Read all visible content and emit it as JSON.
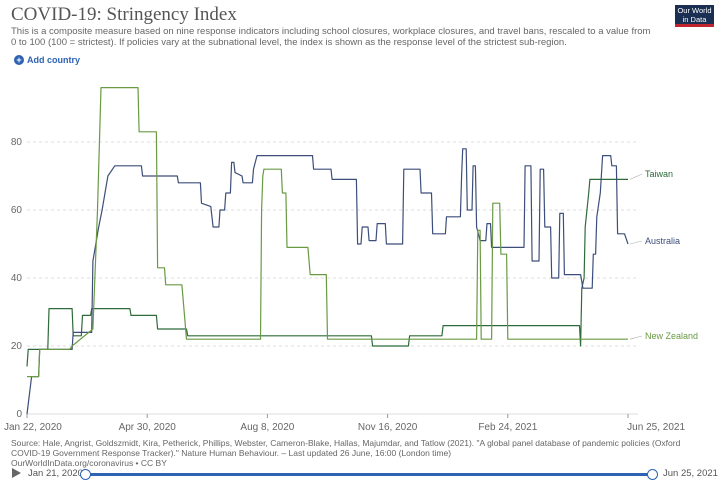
{
  "header": {
    "title": "COVID-19: Stringency Index",
    "subtitle": "This is a composite measure based on nine response indicators including school closures, workplace closures, and travel bans, rescaled to a value from 0 to 100 (100 = strictest). If policies vary at the subnational level, the index is shown as the response level of the strictest sub-region.",
    "logo_text": "Our World in Data",
    "add_country_label": "Add country"
  },
  "footer": {
    "source": "Source: Hale, Angrist, Goldszmidt, Kira, Petherick, Phillips, Webster, Cameron-Blake, Hallas, Majumdar, and Tatlow (2021). \"A global panel database of pandemic policies (Oxford COVID-19 Government Response Tracker).\" Nature Human Behaviour. – Last updated 26 June, 16:00 (London time)",
    "url_license": "OurWorldInData.org/coronavirus • CC BY"
  },
  "timeline": {
    "start_label": "Jan 21, 2020",
    "end_label": "Jun 25, 2021"
  },
  "colors": {
    "australia": "#3d4e7a",
    "taiwan": "#2f6b3a",
    "new_zealand": "#6a9a44",
    "grid": "#dddddd",
    "axis_text": "#666666",
    "accent": "#2e62b2"
  },
  "chart_data": {
    "type": "line",
    "title": "COVID-19: Stringency Index",
    "xlabel": "",
    "ylabel": "",
    "xlim": [
      "2020-01-22",
      "2021-06-25"
    ],
    "ylim": [
      0,
      100
    ],
    "yticks": [
      0,
      20,
      40,
      60,
      80
    ],
    "xtick_labels": [
      "Jan 22, 2020",
      "Apr 30, 2020",
      "Aug 8, 2020",
      "Nov 16, 2020",
      "Feb 24, 2021",
      "Jun 25, 2021"
    ],
    "grid": true,
    "legend": "inline-right",
    "series": [
      {
        "name": "Taiwan",
        "color_key": "taiwan",
        "points": [
          [
            "2020-01-22",
            14
          ],
          [
            "2020-01-23",
            19
          ],
          [
            "2020-02-09",
            19
          ],
          [
            "2020-02-10",
            31
          ],
          [
            "2020-03-01",
            31
          ],
          [
            "2020-03-02",
            23
          ],
          [
            "2020-03-09",
            23
          ],
          [
            "2020-03-10",
            29
          ],
          [
            "2020-03-17",
            29
          ],
          [
            "2020-03-18",
            31
          ],
          [
            "2020-04-05",
            31
          ],
          [
            "2020-04-06",
            31
          ],
          [
            "2020-04-20",
            31
          ],
          [
            "2020-04-21",
            29
          ],
          [
            "2020-05-13",
            29
          ],
          [
            "2020-05-14",
            25
          ],
          [
            "2020-06-08",
            25
          ],
          [
            "2020-06-09",
            23
          ],
          [
            "2020-11-15",
            23
          ],
          [
            "2020-11-16",
            20
          ],
          [
            "2020-12-17",
            20
          ],
          [
            "2020-12-18",
            23
          ],
          [
            "2021-01-15",
            23
          ],
          [
            "2021-01-16",
            26
          ],
          [
            "2021-05-14",
            26
          ],
          [
            "2021-05-15",
            20
          ],
          [
            "2021-05-16",
            37
          ],
          [
            "2021-05-18",
            40
          ],
          [
            "2021-05-19",
            55
          ],
          [
            "2021-05-22",
            65
          ],
          [
            "2021-05-23",
            69
          ],
          [
            "2021-06-25",
            69
          ]
        ]
      },
      {
        "name": "Australia",
        "color_key": "australia",
        "points": [
          [
            "2020-01-22",
            0
          ],
          [
            "2020-01-26",
            11
          ],
          [
            "2020-02-01",
            11
          ],
          [
            "2020-02-02",
            19
          ],
          [
            "2020-03-01",
            19
          ],
          [
            "2020-03-02",
            24
          ],
          [
            "2020-03-18",
            24
          ],
          [
            "2020-03-19",
            45
          ],
          [
            "2020-03-24",
            55
          ],
          [
            "2020-03-27",
            60
          ],
          [
            "2020-04-01",
            70
          ],
          [
            "2020-04-07",
            73
          ],
          [
            "2020-04-30",
            73
          ],
          [
            "2020-05-01",
            70
          ],
          [
            "2020-05-31",
            70
          ],
          [
            "2020-06-01",
            68
          ],
          [
            "2020-06-20",
            68
          ],
          [
            "2020-06-21",
            62
          ],
          [
            "2020-06-29",
            61
          ],
          [
            "2020-07-01",
            55
          ],
          [
            "2020-07-06",
            55
          ],
          [
            "2020-07-07",
            60
          ],
          [
            "2020-07-11",
            60
          ],
          [
            "2020-07-12",
            65
          ],
          [
            "2020-07-16",
            65
          ],
          [
            "2020-07-17",
            74
          ],
          [
            "2020-07-19",
            74
          ],
          [
            "2020-07-20",
            71
          ],
          [
            "2020-07-26",
            70
          ],
          [
            "2020-07-27",
            68
          ],
          [
            "2020-08-04",
            68
          ],
          [
            "2020-08-05",
            72
          ],
          [
            "2020-08-08",
            76
          ],
          [
            "2020-09-25",
            76
          ],
          [
            "2020-09-26",
            72
          ],
          [
            "2020-10-11",
            72
          ],
          [
            "2020-10-12",
            69
          ],
          [
            "2020-11-02",
            69
          ],
          [
            "2020-11-03",
            50
          ],
          [
            "2020-11-06",
            50
          ],
          [
            "2020-11-07",
            55
          ],
          [
            "2020-11-12",
            55
          ],
          [
            "2020-11-13",
            51
          ],
          [
            "2020-11-19",
            51
          ],
          [
            "2020-11-20",
            56
          ],
          [
            "2020-11-27",
            56
          ],
          [
            "2020-11-28",
            50
          ],
          [
            "2020-12-12",
            50
          ],
          [
            "2020-12-13",
            72
          ],
          [
            "2020-12-27",
            72
          ],
          [
            "2020-12-28",
            65
          ],
          [
            "2021-01-06",
            65
          ],
          [
            "2021-01-07",
            53
          ],
          [
            "2021-01-18",
            53
          ],
          [
            "2021-01-19",
            58
          ],
          [
            "2021-01-31",
            58
          ],
          [
            "2021-02-01",
            70
          ],
          [
            "2021-02-02",
            78
          ],
          [
            "2021-02-05",
            78
          ],
          [
            "2021-02-06",
            60
          ],
          [
            "2021-02-10",
            60
          ],
          [
            "2021-02-11",
            73
          ],
          [
            "2021-02-13",
            73
          ],
          [
            "2021-02-14",
            55
          ],
          [
            "2021-02-17",
            51
          ],
          [
            "2021-02-22",
            51
          ],
          [
            "2021-02-23",
            56
          ],
          [
            "2021-02-26",
            56
          ],
          [
            "2021-02-27",
            49
          ],
          [
            "2021-03-27",
            49
          ],
          [
            "2021-03-28",
            73
          ],
          [
            "2021-04-02",
            73
          ],
          [
            "2021-04-03",
            45
          ],
          [
            "2021-04-09",
            45
          ],
          [
            "2021-04-10",
            72
          ],
          [
            "2021-04-13",
            72
          ],
          [
            "2021-04-14",
            55
          ],
          [
            "2021-04-19",
            55
          ],
          [
            "2021-04-20",
            40
          ],
          [
            "2021-04-26",
            40
          ],
          [
            "2021-04-27",
            59
          ],
          [
            "2021-04-30",
            59
          ],
          [
            "2021-05-01",
            41
          ],
          [
            "2021-05-15",
            41
          ],
          [
            "2021-05-17",
            37
          ],
          [
            "2021-05-25",
            37
          ],
          [
            "2021-05-26",
            47
          ],
          [
            "2021-05-28",
            47
          ],
          [
            "2021-05-29",
            58
          ],
          [
            "2021-06-01",
            65
          ],
          [
            "2021-06-03",
            76
          ],
          [
            "2021-06-10",
            76
          ],
          [
            "2021-06-11",
            73
          ],
          [
            "2021-06-15",
            73
          ],
          [
            "2021-06-16",
            53
          ],
          [
            "2021-06-22",
            53
          ],
          [
            "2021-06-25",
            50
          ]
        ]
      },
      {
        "name": "New Zealand",
        "color_key": "new_zealand",
        "points": [
          [
            "2020-01-22",
            11
          ],
          [
            "2020-02-01",
            11
          ],
          [
            "2020-02-02",
            19
          ],
          [
            "2020-02-28",
            19
          ],
          [
            "2020-03-01",
            20
          ],
          [
            "2020-03-19",
            25
          ],
          [
            "2020-03-23",
            60
          ],
          [
            "2020-03-26",
            96
          ],
          [
            "2020-04-27",
            96
          ],
          [
            "2020-04-28",
            83
          ],
          [
            "2020-05-13",
            83
          ],
          [
            "2020-05-14",
            43
          ],
          [
            "2020-05-20",
            43
          ],
          [
            "2020-05-21",
            38
          ],
          [
            "2020-06-04",
            38
          ],
          [
            "2020-06-08",
            22
          ],
          [
            "2020-08-11",
            22
          ],
          [
            "2020-08-12",
            60
          ],
          [
            "2020-08-13",
            70
          ],
          [
            "2020-08-14",
            72
          ],
          [
            "2020-08-29",
            72
          ],
          [
            "2020-08-30",
            65
          ],
          [
            "2020-09-02",
            65
          ],
          [
            "2020-09-03",
            49
          ],
          [
            "2020-09-21",
            49
          ],
          [
            "2020-09-23",
            41
          ],
          [
            "2020-10-07",
            41
          ],
          [
            "2020-10-08",
            22
          ],
          [
            "2021-02-14",
            22
          ],
          [
            "2021-02-15",
            54
          ],
          [
            "2021-02-17",
            54
          ],
          [
            "2021-02-18",
            22
          ],
          [
            "2021-02-27",
            22
          ],
          [
            "2021-02-28",
            62
          ],
          [
            "2021-03-06",
            62
          ],
          [
            "2021-03-07",
            47
          ],
          [
            "2021-03-12",
            47
          ],
          [
            "2021-03-13",
            22
          ],
          [
            "2021-06-25",
            22
          ]
        ]
      }
    ]
  }
}
